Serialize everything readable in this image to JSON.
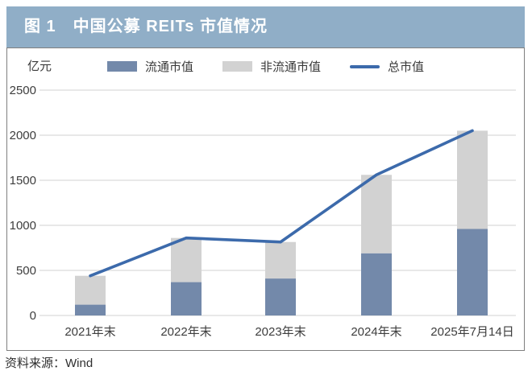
{
  "figure": {
    "title": "图 1　中国公募 REITs 市值情况"
  },
  "chart": {
    "unit_label": "亿元",
    "legend": [
      {
        "label": "流通市值",
        "swatch": "bar",
        "color": "#7389aa"
      },
      {
        "label": "非流通市值",
        "swatch": "bar",
        "color": "#d2d2d2"
      },
      {
        "label": "总市值",
        "swatch": "line",
        "color": "#3c6aab"
      }
    ]
  },
  "source_note": "资料来源：Wind",
  "colors": {
    "title_bar_bg": "#90aec7",
    "title_text": "#ffffff",
    "bar_circulating": "#7389aa",
    "bar_non_circulating": "#d2d2d2",
    "total_line": "#3c6aab",
    "grid": "#e0e0e0",
    "axis_text": "#3d3d3d",
    "box_border": "#7f7f7f"
  },
  "chart_data": {
    "type": "bar",
    "subtype": "stacked-bars-with-total-line",
    "title": "图 1　中国公募 REITs 市值情况",
    "categories": [
      "2021年末",
      "2022年末",
      "2023年末",
      "2024年末",
      "2025年7月14日"
    ],
    "series": [
      {
        "name": "流通市值",
        "type": "bar",
        "values": [
          120,
          370,
          410,
          690,
          960
        ]
      },
      {
        "name": "非流通市值",
        "type": "bar",
        "values": [
          320,
          490,
          405,
          870,
          1090
        ]
      },
      {
        "name": "总市值",
        "type": "line",
        "values": [
          440,
          860,
          815,
          1560,
          2050
        ]
      }
    ],
    "stacked": true,
    "xlabel": "",
    "ylabel": "亿元",
    "ylim": [
      0,
      2500
    ],
    "yticks": [
      0,
      500,
      1000,
      1500,
      2000,
      2500
    ],
    "grid": "horizontal",
    "legend_position": "top"
  }
}
